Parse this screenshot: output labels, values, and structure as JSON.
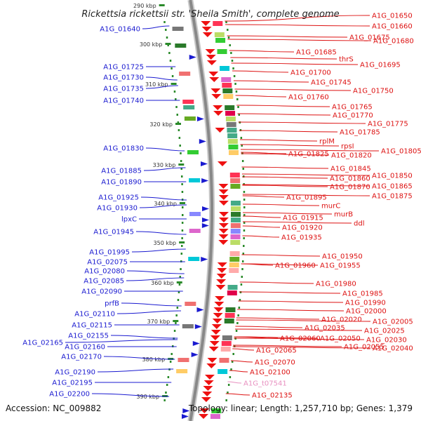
{
  "title": "Rickettsia rickettsii str. 'Sheila Smith', complete genome",
  "accession": "Accession: NC_009882",
  "topology": "Topology: linear; Length: 1,257,710 bp; Genes: 1,379",
  "colors": {
    "left_labels": "#1a1ad0",
    "right_labels": "#dd1111",
    "pseudo_label": "#e890c0",
    "backbone": "#888888",
    "tick_marks": "#2a8a2a"
  },
  "ticks": [
    "290 kbp",
    "300 kbp",
    "310 kbp",
    "320 kbp",
    "330 kbp",
    "340 kbp",
    "350 kbp",
    "360 kbp",
    "370 kbp",
    "380 kbp",
    "390 kbp"
  ],
  "left_labels": [
    "A1G_01640",
    "A1G_01725",
    "A1G_01730",
    "A1G_01735",
    "A1G_01740",
    "A1G_01830",
    "A1G_01885",
    "A1G_01890",
    "A1G_01925",
    "A1G_01930",
    "lpxC",
    "A1G_01945",
    "A1G_01995",
    "A1G_02075",
    "A1G_02080",
    "A1G_02085",
    "A1G_02090",
    "prfB",
    "A1G_02110",
    "A1G_02115",
    "A1G_02155",
    "A1G_02165",
    "A1G_02160",
    "A1G_02170",
    "A1G_02190",
    "A1G_02195",
    "A1G_02200"
  ],
  "right_labels": [
    "A1G_01650",
    "A1G_01660",
    "A1G_01675",
    "A1G_01680",
    "A1G_01685",
    "thrS",
    "A1G_01695",
    "A1G_01700",
    "A1G_01745",
    "A1G_01750",
    "A1G_01760",
    "A1G_01765",
    "A1G_01770",
    "A1G_01775",
    "A1G_01785",
    "rplM",
    "rpsI",
    "A1G_01805",
    "A1G_01825",
    "A1G_01820",
    "A1G_01845",
    "A1G_01850",
    "A1G_01860",
    "A1G_01865",
    "A1G_01870",
    "A1G_01875",
    "A1G_01895",
    "murC",
    "murB",
    "A1G_01915",
    "ddl",
    "A1G_01920",
    "A1G_01935",
    "A1G_01950",
    "A1G_01960",
    "A1G_01955",
    "A1G_01980",
    "A1G_01985",
    "A1G_01990",
    "A1G_02000",
    "A1G_02005",
    "A1G_02020",
    "A1G_02025",
    "A1G_02035",
    "A1G_02030",
    "A1G_02060",
    "A1G_02050",
    "A1G_02040",
    "A1G_02055",
    "A1G_02065",
    "A1G_02070",
    "A1G_02100",
    "A1G_t07541",
    "A1G_02135"
  ]
}
